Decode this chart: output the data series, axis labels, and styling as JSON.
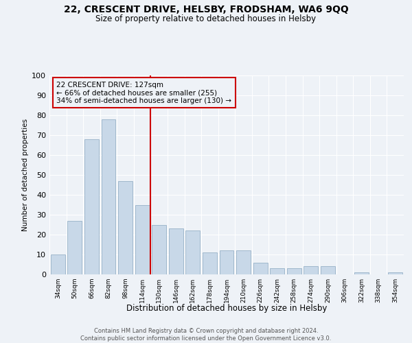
{
  "title1": "22, CRESCENT DRIVE, HELSBY, FRODSHAM, WA6 9QQ",
  "title2": "Size of property relative to detached houses in Helsby",
  "xlabel": "Distribution of detached houses by size in Helsby",
  "ylabel": "Number of detached properties",
  "footnote": "Contains HM Land Registry data © Crown copyright and database right 2024.\nContains public sector information licensed under the Open Government Licence v3.0.",
  "bar_labels": [
    "34sqm",
    "50sqm",
    "66sqm",
    "82sqm",
    "98sqm",
    "114sqm",
    "130sqm",
    "146sqm",
    "162sqm",
    "178sqm",
    "194sqm",
    "210sqm",
    "226sqm",
    "242sqm",
    "258sqm",
    "274sqm",
    "290sqm",
    "306sqm",
    "322sqm",
    "338sqm",
    "354sqm"
  ],
  "bar_values": [
    10,
    27,
    68,
    78,
    47,
    35,
    25,
    23,
    22,
    11,
    12,
    12,
    6,
    3,
    3,
    4,
    4,
    0,
    1,
    0,
    1
  ],
  "bar_color": "#c8d8e8",
  "bar_edge_color": "#a0b8cc",
  "property_label": "22 CRESCENT DRIVE: 127sqm",
  "pct_smaller": 66,
  "n_smaller": 255,
  "pct_larger": 34,
  "n_larger": 130,
  "vline_x_index": 6,
  "vline_color": "#cc0000",
  "annotation_box_color": "#cc0000",
  "background_color": "#eef2f7",
  "grid_color": "#ffffff",
  "ylim": [
    0,
    100
  ],
  "yticks": [
    0,
    10,
    20,
    30,
    40,
    50,
    60,
    70,
    80,
    90,
    100
  ]
}
